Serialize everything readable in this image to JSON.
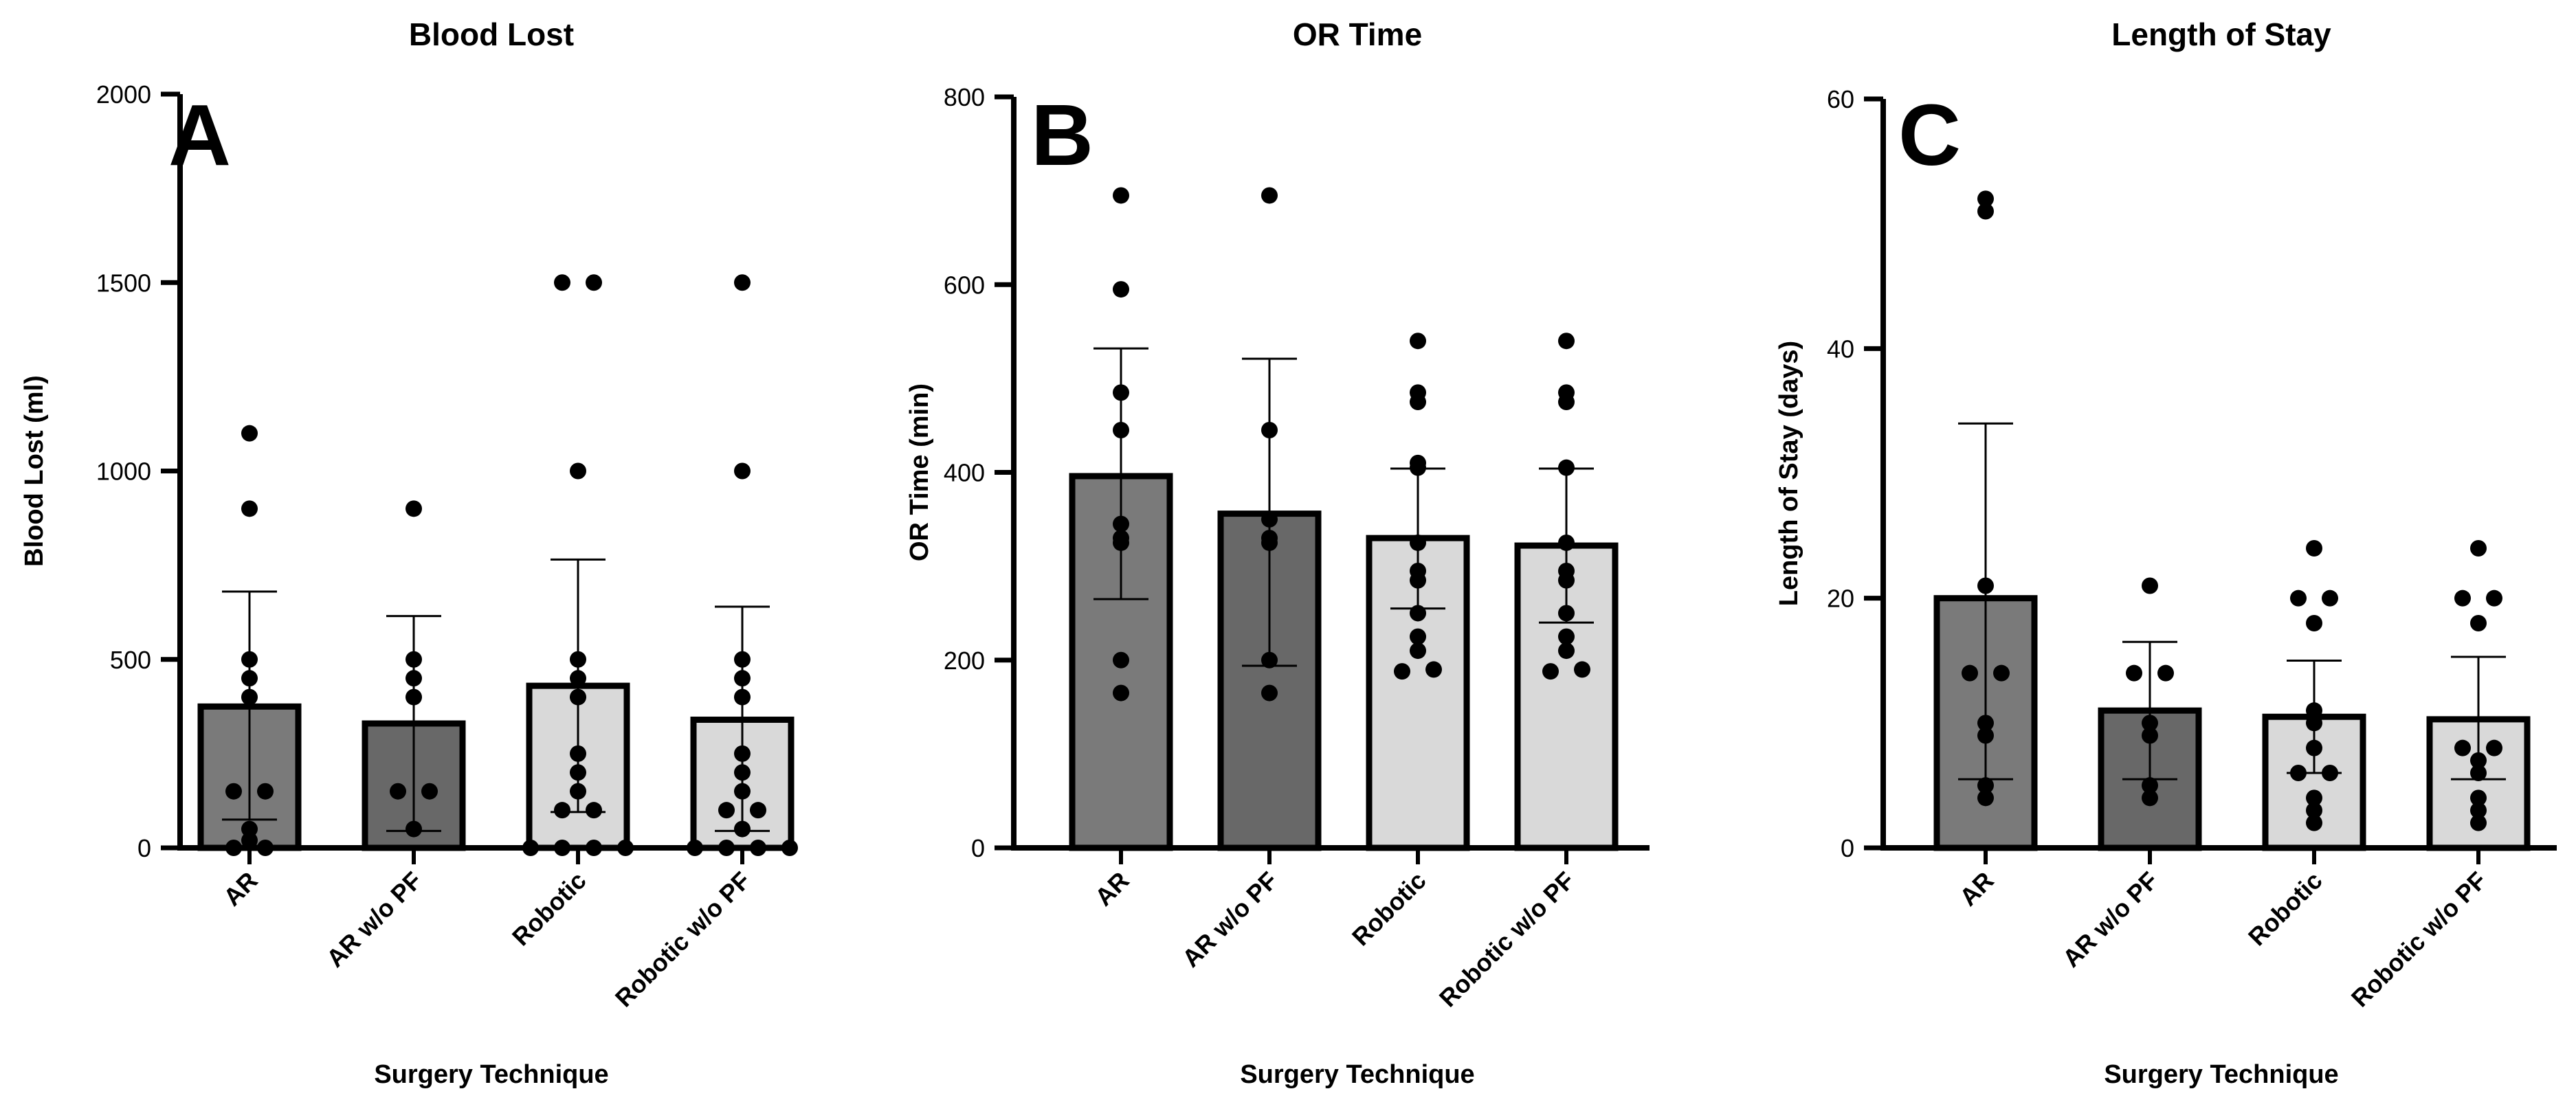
{
  "figure": {
    "background": "#ffffff",
    "axis_color": "#000000",
    "point_color": "#000000"
  },
  "chart_data": [
    {
      "type": "bar",
      "panel_letter": "A",
      "title": "Blood Lost",
      "xlabel": "Surgery Technique",
      "ylabel": "Blood Lost (ml)",
      "ylim": [
        0,
        2000
      ],
      "yticks": [
        0,
        500,
        1000,
        1500,
        2000
      ],
      "grid": false,
      "categories": [
        "AR",
        "AR w/o PF",
        "Robotic",
        "Robotic w/o PF"
      ],
      "bar_colors": [
        "#7a7a7a",
        "#686868",
        "#d9d9d9",
        "#d9d9d9"
      ],
      "values": [
        375,
        330,
        430,
        340
      ],
      "error_lower": [
        75,
        45,
        95,
        45
      ],
      "error_upper": [
        680,
        615,
        765,
        640
      ],
      "points": [
        [
          0,
          0,
          20,
          50,
          150,
          150,
          400,
          450,
          500,
          900,
          1100
        ],
        [
          50,
          150,
          150,
          400,
          450,
          500,
          900
        ],
        [
          0,
          0,
          0,
          0,
          100,
          100,
          150,
          200,
          250,
          400,
          450,
          500,
          1000,
          1500,
          1500
        ],
        [
          0,
          0,
          0,
          0,
          50,
          100,
          100,
          150,
          200,
          250,
          400,
          450,
          500,
          1000,
          1500
        ]
      ]
    },
    {
      "type": "bar",
      "panel_letter": "B",
      "title": "OR Time",
      "xlabel": "Surgery Technique",
      "ylabel": "OR Time (min)",
      "ylim": [
        0,
        800
      ],
      "yticks": [
        0,
        200,
        400,
        600,
        800
      ],
      "grid": false,
      "categories": [
        "AR",
        "AR w/o PF",
        "Robotic",
        "Robotic w/o PF"
      ],
      "bar_colors": [
        "#7a7a7a",
        "#686868",
        "#d9d9d9",
        "#d9d9d9"
      ],
      "values": [
        396,
        356,
        330,
        322
      ],
      "error_lower": [
        265,
        194,
        255,
        240
      ],
      "error_upper": [
        532,
        521,
        404,
        404
      ],
      "points": [
        [
          165,
          200,
          325,
          330,
          345,
          445,
          485,
          595,
          695
        ],
        [
          165,
          200,
          325,
          330,
          350,
          445,
          695
        ],
        [
          188,
          190,
          210,
          225,
          250,
          285,
          295,
          325,
          405,
          410,
          475,
          485,
          540
        ],
        [
          188,
          190,
          210,
          225,
          250,
          285,
          295,
          325,
          405,
          475,
          485,
          540
        ]
      ]
    },
    {
      "type": "bar",
      "panel_letter": "C",
      "title": "Length of Stay",
      "xlabel": "Surgery Technique",
      "ylabel": "Length of Stay (days)",
      "ylim": [
        0,
        60
      ],
      "yticks": [
        0,
        20,
        40,
        60
      ],
      "grid": false,
      "categories": [
        "AR",
        "AR w/o PF",
        "Robotic",
        "Robotic w/o PF"
      ],
      "bar_colors": [
        "#7a7a7a",
        "#686868",
        "#d9d9d9",
        "#d9d9d9"
      ],
      "values": [
        20,
        11,
        10.5,
        10.3
      ],
      "error_lower": [
        5.5,
        5.5,
        6,
        5.5
      ],
      "error_upper": [
        34,
        16.5,
        15,
        15.3
      ],
      "points": [
        [
          4,
          5,
          9,
          10,
          14,
          14,
          21,
          51,
          52
        ],
        [
          4,
          5,
          9,
          10,
          14,
          14,
          21
        ],
        [
          2,
          3,
          4,
          6,
          6,
          8,
          10,
          11,
          18,
          20,
          20,
          24
        ],
        [
          2,
          3,
          4,
          6,
          7,
          8,
          8,
          18,
          20,
          20,
          24
        ]
      ]
    }
  ]
}
